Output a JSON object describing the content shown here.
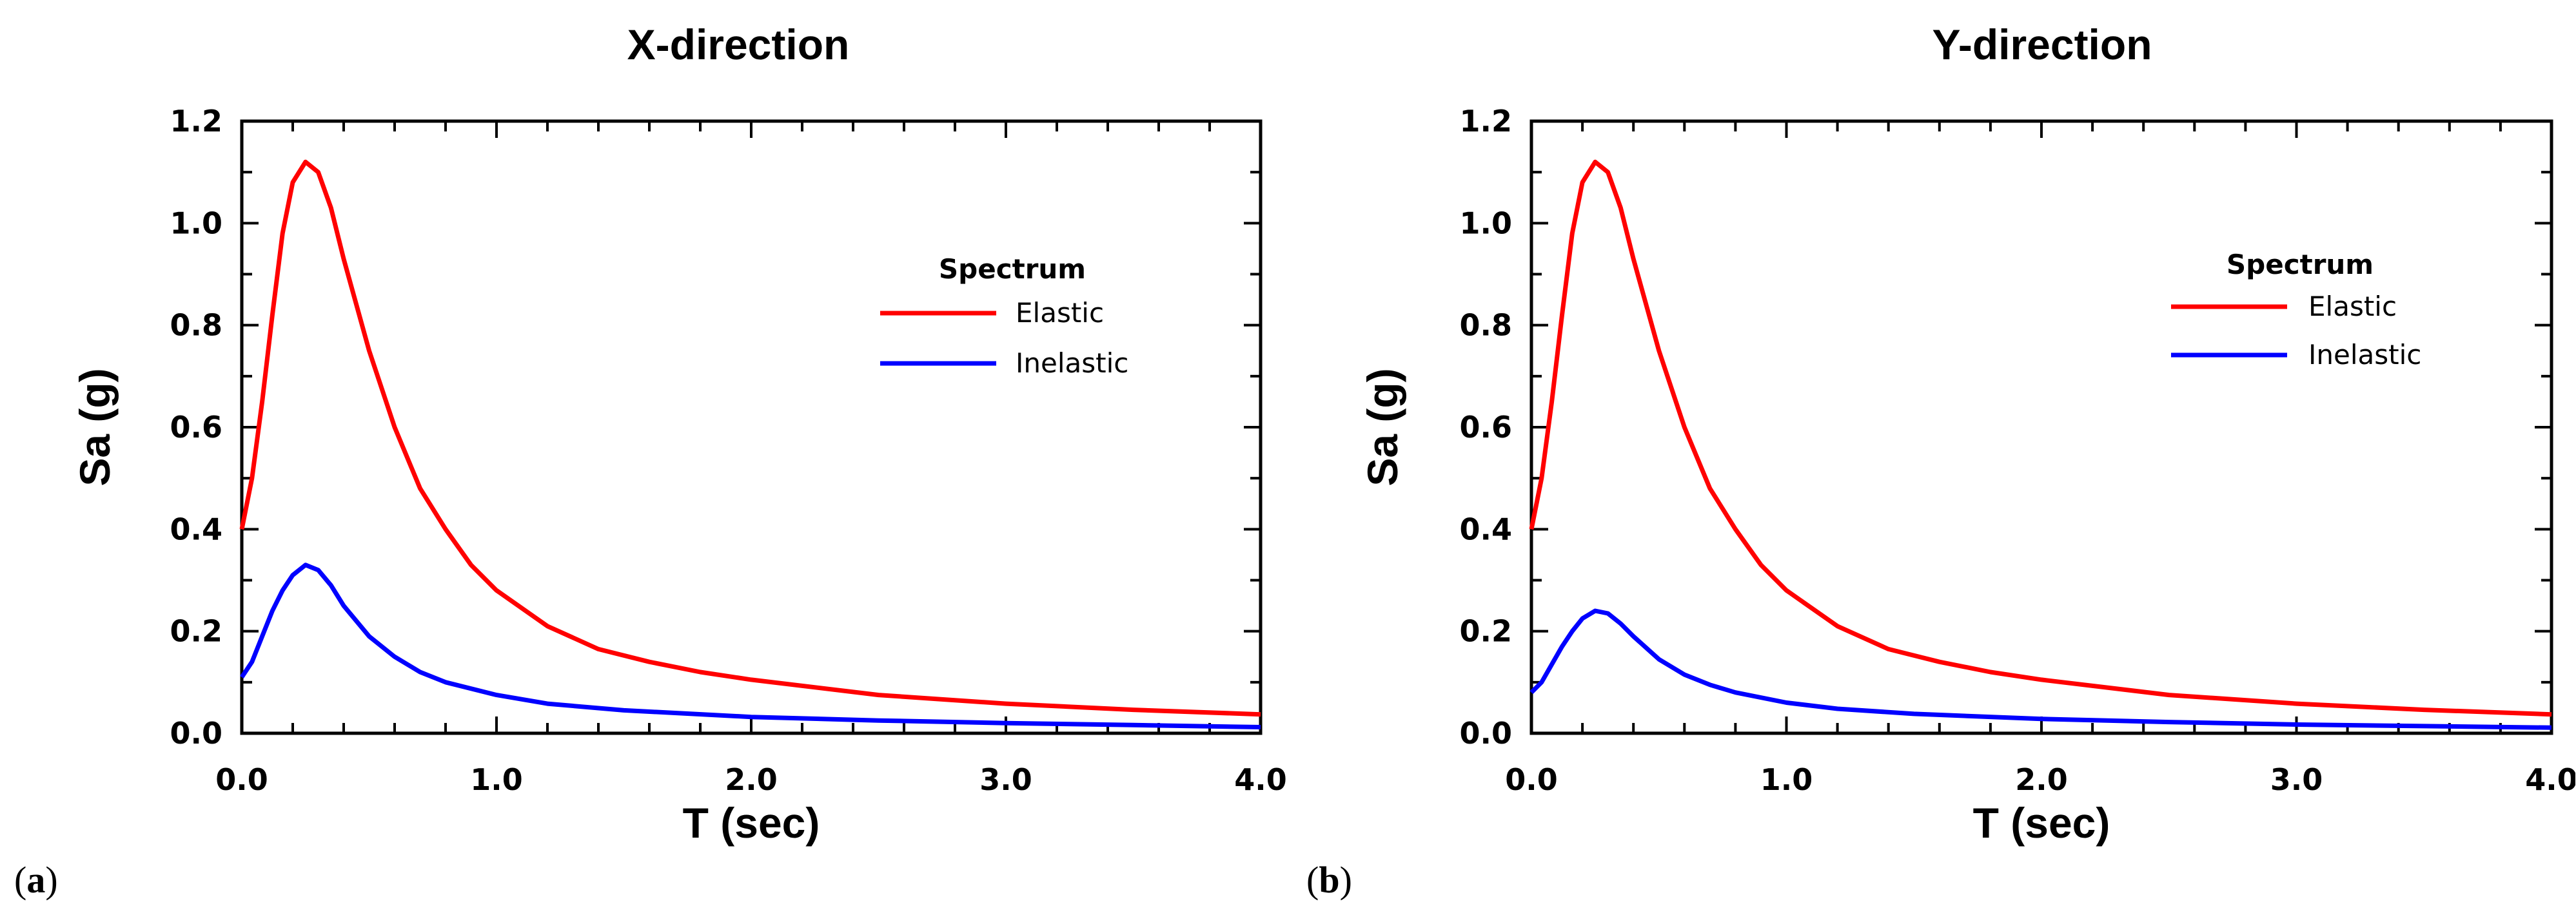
{
  "chart_data": [
    {
      "type": "line",
      "panel_label": "a",
      "title": "X-direction",
      "xlabel": "T (sec)",
      "ylabel": "Sa (g)",
      "xlim": [
        0,
        4
      ],
      "ylim": [
        0,
        1.2
      ],
      "x_ticks": [
        "0.0",
        "1.0",
        "2.0",
        "3.0",
        "4.0"
      ],
      "y_ticks": [
        "0.0",
        "0.2",
        "0.4",
        "0.6",
        "0.8",
        "1.0",
        "1.2"
      ],
      "legend": {
        "title": "Spectrum",
        "position": "right"
      },
      "series": [
        {
          "name": "Elastic",
          "color": "#ff0000",
          "points": [
            [
              0.0,
              0.4
            ],
            [
              0.04,
              0.5
            ],
            [
              0.08,
              0.65
            ],
            [
              0.12,
              0.82
            ],
            [
              0.16,
              0.98
            ],
            [
              0.2,
              1.08
            ],
            [
              0.25,
              1.12
            ],
            [
              0.3,
              1.1
            ],
            [
              0.35,
              1.03
            ],
            [
              0.4,
              0.93
            ],
            [
              0.5,
              0.75
            ],
            [
              0.6,
              0.6
            ],
            [
              0.7,
              0.48
            ],
            [
              0.8,
              0.4
            ],
            [
              0.9,
              0.33
            ],
            [
              1.0,
              0.28
            ],
            [
              1.2,
              0.21
            ],
            [
              1.4,
              0.165
            ],
            [
              1.6,
              0.14
            ],
            [
              1.8,
              0.12
            ],
            [
              2.0,
              0.105
            ],
            [
              2.5,
              0.075
            ],
            [
              3.0,
              0.058
            ],
            [
              3.5,
              0.046
            ],
            [
              4.0,
              0.037
            ]
          ]
        },
        {
          "name": "Inelastic",
          "color": "#0000ff",
          "points": [
            [
              0.0,
              0.11
            ],
            [
              0.04,
              0.14
            ],
            [
              0.08,
              0.19
            ],
            [
              0.12,
              0.24
            ],
            [
              0.16,
              0.28
            ],
            [
              0.2,
              0.31
            ],
            [
              0.25,
              0.33
            ],
            [
              0.3,
              0.32
            ],
            [
              0.35,
              0.29
            ],
            [
              0.4,
              0.25
            ],
            [
              0.5,
              0.19
            ],
            [
              0.6,
              0.15
            ],
            [
              0.7,
              0.12
            ],
            [
              0.8,
              0.1
            ],
            [
              1.0,
              0.075
            ],
            [
              1.2,
              0.058
            ],
            [
              1.5,
              0.045
            ],
            [
              2.0,
              0.032
            ],
            [
              2.5,
              0.025
            ],
            [
              3.0,
              0.02
            ],
            [
              3.5,
              0.016
            ],
            [
              4.0,
              0.012
            ]
          ]
        }
      ]
    },
    {
      "type": "line",
      "panel_label": "b",
      "title": "Y-direction",
      "xlabel": "T (sec)",
      "ylabel": "Sa (g)",
      "xlim": [
        0,
        4
      ],
      "ylim": [
        0,
        1.2
      ],
      "x_ticks": [
        "0.0",
        "1.0",
        "2.0",
        "3.0",
        "4.0"
      ],
      "y_ticks": [
        "0.0",
        "0.2",
        "0.4",
        "0.6",
        "0.8",
        "1.0",
        "1.2"
      ],
      "legend": {
        "title": "Spectrum",
        "position": "right"
      },
      "series": [
        {
          "name": "Elastic",
          "color": "#ff0000",
          "points": [
            [
              0.0,
              0.4
            ],
            [
              0.04,
              0.5
            ],
            [
              0.08,
              0.65
            ],
            [
              0.12,
              0.82
            ],
            [
              0.16,
              0.98
            ],
            [
              0.2,
              1.08
            ],
            [
              0.25,
              1.12
            ],
            [
              0.3,
              1.1
            ],
            [
              0.35,
              1.03
            ],
            [
              0.4,
              0.93
            ],
            [
              0.5,
              0.75
            ],
            [
              0.6,
              0.6
            ],
            [
              0.7,
              0.48
            ],
            [
              0.8,
              0.4
            ],
            [
              0.9,
              0.33
            ],
            [
              1.0,
              0.28
            ],
            [
              1.2,
              0.21
            ],
            [
              1.4,
              0.165
            ],
            [
              1.6,
              0.14
            ],
            [
              1.8,
              0.12
            ],
            [
              2.0,
              0.105
            ],
            [
              2.5,
              0.075
            ],
            [
              3.0,
              0.058
            ],
            [
              3.5,
              0.046
            ],
            [
              4.0,
              0.037
            ]
          ]
        },
        {
          "name": "Inelastic",
          "color": "#0000ff",
          "points": [
            [
              0.0,
              0.08
            ],
            [
              0.04,
              0.1
            ],
            [
              0.08,
              0.135
            ],
            [
              0.12,
              0.17
            ],
            [
              0.16,
              0.2
            ],
            [
              0.2,
              0.225
            ],
            [
              0.25,
              0.24
            ],
            [
              0.3,
              0.235
            ],
            [
              0.35,
              0.215
            ],
            [
              0.4,
              0.19
            ],
            [
              0.5,
              0.145
            ],
            [
              0.6,
              0.115
            ],
            [
              0.7,
              0.095
            ],
            [
              0.8,
              0.08
            ],
            [
              1.0,
              0.06
            ],
            [
              1.2,
              0.048
            ],
            [
              1.5,
              0.038
            ],
            [
              2.0,
              0.028
            ],
            [
              2.5,
              0.022
            ],
            [
              3.0,
              0.017
            ],
            [
              3.5,
              0.014
            ],
            [
              4.0,
              0.011
            ]
          ]
        }
      ]
    }
  ]
}
